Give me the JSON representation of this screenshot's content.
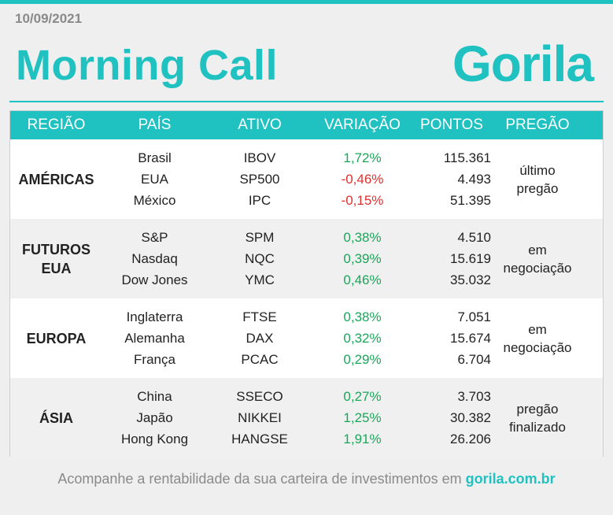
{
  "date": "10/09/2021",
  "title": "Morning Call",
  "logo": "Gorila",
  "headers": [
    "REGIÃO",
    "PAÍS",
    "ATIVO",
    "VARIAÇÃO",
    "PONTOS",
    "PREGÃO"
  ],
  "groups": [
    {
      "region_line1": "AMÉRICAS",
      "region_line2": "",
      "rows": [
        {
          "pais": "Brasil",
          "ativo": "IBOV",
          "variacao": "1,72%",
          "pontos": "115.361"
        },
        {
          "pais": "EUA",
          "ativo": "SP500",
          "variacao": "-0,46%",
          "pontos": "4.493"
        },
        {
          "pais": "México",
          "ativo": "IPC",
          "variacao": "-0,15%",
          "pontos": "51.395"
        }
      ],
      "pregao_line1": "último",
      "pregao_line2": "pregão"
    },
    {
      "region_line1": "FUTUROS",
      "region_line2": "EUA",
      "rows": [
        {
          "pais": "S&P",
          "ativo": "SPM",
          "variacao": "0,38%",
          "pontos": "4.510"
        },
        {
          "pais": "Nasdaq",
          "ativo": "NQC",
          "variacao": "0,39%",
          "pontos": "15.619"
        },
        {
          "pais": "Dow Jones",
          "ativo": "YMC",
          "variacao": "0,46%",
          "pontos": "35.032"
        }
      ],
      "pregao_line1": "em",
      "pregao_line2": "negociação"
    },
    {
      "region_line1": "EUROPA",
      "region_line2": "",
      "rows": [
        {
          "pais": "Inglaterra",
          "ativo": "FTSE",
          "variacao": "0,38%",
          "pontos": "7.051"
        },
        {
          "pais": "Alemanha",
          "ativo": "DAX",
          "variacao": "0,32%",
          "pontos": "15.674"
        },
        {
          "pais": "França",
          "ativo": "PCAC",
          "variacao": "0,29%",
          "pontos": "6.704"
        }
      ],
      "pregao_line1": "em",
      "pregao_line2": "negociação"
    },
    {
      "region_line1": "ÁSIA",
      "region_line2": "",
      "rows": [
        {
          "pais": "China",
          "ativo": "SSECO",
          "variacao": "0,27%",
          "pontos": "3.703"
        },
        {
          "pais": "Japão",
          "ativo": "NIKKEI",
          "variacao": "1,25%",
          "pontos": "30.382"
        },
        {
          "pais": "Hong Kong",
          "ativo": "HANGSE",
          "variacao": "1,91%",
          "pontos": "26.206"
        }
      ],
      "pregao_line1": "pregão",
      "pregao_line2": "finalizado"
    }
  ],
  "colors": {
    "accent": "#1fc1c1",
    "positive": "#1aa75a",
    "negative": "#e03030"
  },
  "footer": {
    "text": "Acompanhe a rentabilidade da sua carteira de investimentos em",
    "link": "gorila.com.br"
  }
}
